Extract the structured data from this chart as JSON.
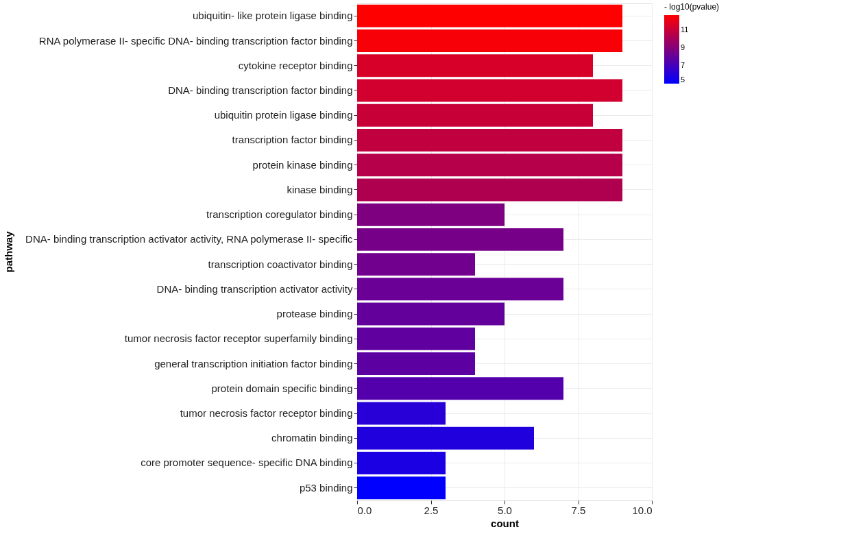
{
  "chart_data": {
    "type": "bar",
    "orientation": "horizontal",
    "xlabel": "count",
    "ylabel": "pathway",
    "clabel": "- log10(pvalue)",
    "categories": [
      "ubiquitin- like protein ligase binding",
      "RNA polymerase II- specific DNA- binding transcription factor binding",
      "cytokine receptor binding",
      "DNA- binding transcription factor binding",
      "ubiquitin protein ligase binding",
      "transcription factor binding",
      "protein kinase binding",
      "kinase binding",
      "transcription coregulator binding",
      "DNA- binding transcription activator activity, RNA polymerase II- specific",
      "transcription coactivator binding",
      "DNA- binding transcription activator activity",
      "protease binding",
      "tumor necrosis factor receptor superfamily binding",
      "general transcription initiation factor binding",
      "protein domain specific binding",
      "tumor necrosis factor receptor binding",
      "chromatin binding",
      "core promoter sequence- specific DNA binding",
      "p53 binding"
    ],
    "values": [
      9,
      9,
      8,
      9,
      8,
      9,
      9,
      9,
      5,
      7,
      4,
      7,
      5,
      4,
      4,
      7,
      3,
      6,
      3,
      3
    ],
    "cvalues": [
      12.7,
      12.5,
      11.5,
      11.3,
      11.0,
      10.8,
      10.5,
      10.3,
      8.8,
      8.6,
      8.4,
      8.2,
      8.0,
      7.9,
      7.8,
      7.5,
      6.2,
      6.0,
      5.8,
      5.0
    ],
    "colors": [
      "#ff0000",
      "#f80007",
      "#d70028",
      "#d1002e",
      "#c70038",
      "#c0003f",
      "#b60049",
      "#af0050",
      "#7e0081",
      "#770088",
      "#71008e",
      "#6a0095",
      "#63009c",
      "#60009f",
      "#5d00a2",
      "#5300ac",
      "#2800d7",
      "#2100de",
      "#1b00e4",
      "#0000ff"
    ],
    "clim": [
      5,
      12.7
    ],
    "cticks": [
      5,
      7,
      9,
      11
    ],
    "xlim": [
      0,
      10
    ],
    "xticks": [
      {
        "value": 0,
        "label": "0.0"
      },
      {
        "value": 2.5,
        "label": "2.5"
      },
      {
        "value": 5,
        "label": "5.0"
      },
      {
        "value": 7.5,
        "label": "7.5"
      },
      {
        "value": 10,
        "label": "10.0"
      }
    ],
    "grid": true
  }
}
